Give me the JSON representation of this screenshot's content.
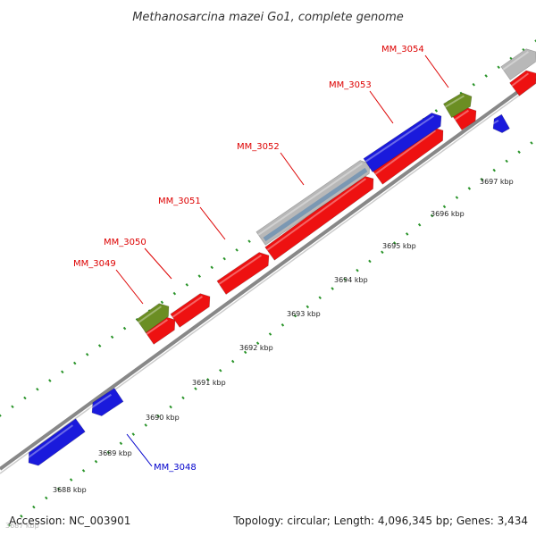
{
  "title": "Methanosarcina mazei Go1, complete genome",
  "footer": {
    "accession": "Accession: NC_003901",
    "summary": "Topology: circular; Length: 4,096,345 bp; Genes: 3,434"
  },
  "colors": {
    "forward_cds": "#ee1111",
    "reverse_cds": "#1a1adc",
    "rna": "#6b8e23",
    "other": "#b8b8b8",
    "highlight": "#4a7fb0",
    "forward_label": "#dd0000",
    "reverse_label": "#0000cc",
    "backbone": "#888888",
    "ticks": "#118811"
  },
  "ticks": [
    {
      "label": "3687 kbp",
      "faded": true
    },
    {
      "label": "3688 kbp"
    },
    {
      "label": "3689 kbp"
    },
    {
      "label": "3690 kbp"
    },
    {
      "label": "3691 kbp"
    },
    {
      "label": "3692 kbp"
    },
    {
      "label": "3693 kbp"
    },
    {
      "label": "3694 kbp"
    },
    {
      "label": "3695 kbp"
    },
    {
      "label": "3696 kbp"
    },
    {
      "label": "3697 kbp"
    }
  ],
  "gene_labels": [
    {
      "name": "MM_3048",
      "strand": "reverse"
    },
    {
      "name": "MM_3049",
      "strand": "forward"
    },
    {
      "name": "MM_3050",
      "strand": "forward"
    },
    {
      "name": "MM_3051",
      "strand": "forward"
    },
    {
      "name": "MM_3052",
      "strand": "forward"
    },
    {
      "name": "MM_3053",
      "strand": "forward"
    },
    {
      "name": "MM_3054",
      "strand": "forward"
    }
  ]
}
